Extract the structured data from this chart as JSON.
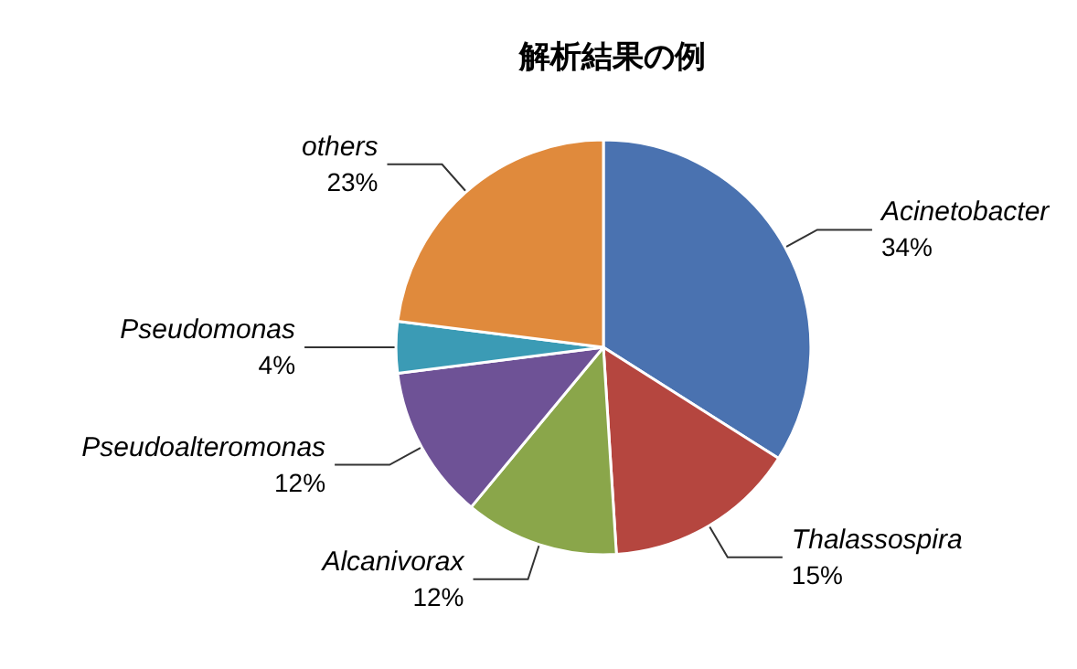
{
  "chart_data": {
    "type": "pie",
    "title": "解析結果の例",
    "categories": [
      "Acinetobacter",
      "Thalassospira",
      "Alcanivorax",
      "Pseudoalteromonas",
      "Pseudomonas",
      "others"
    ],
    "values": [
      34,
      15,
      12,
      12,
      4,
      23
    ],
    "value_labels": [
      "34%",
      "15%",
      "12%",
      "12%",
      "4%",
      "23%"
    ],
    "colors": [
      "#4a72b0",
      "#b5463f",
      "#8aa64a",
      "#6e5296",
      "#3b9bb5",
      "#e08a3c"
    ],
    "legend": false
  }
}
